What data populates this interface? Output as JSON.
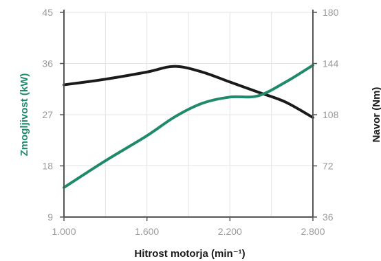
{
  "colors": {
    "power": "#1f8a6b",
    "torque": "#1a1a1a",
    "axis": "#555555",
    "grid": "#e3e3e3",
    "tick_text": "#9a9a9a"
  },
  "chart_data": {
    "type": "line",
    "title": "",
    "xlabel": "Hitrost motorja (min⁻¹)",
    "ylabel_left": "Zmogljivost (kW)",
    "ylabel_right": "Navor (Nm)",
    "xlim": [
      1000,
      2800
    ],
    "ylim_left": [
      9,
      45
    ],
    "ylim_right": [
      36,
      180
    ],
    "x_ticks": [
      1000,
      1600,
      2200,
      2800
    ],
    "x_tick_labels": [
      "1.000",
      "1.600",
      "2.200",
      "2.800"
    ],
    "y_left_ticks": [
      9,
      18,
      27,
      36,
      45
    ],
    "y_left_tick_labels": [
      "9",
      "18",
      "27",
      "36",
      "45"
    ],
    "y_right_ticks": [
      36,
      72,
      108,
      144,
      180
    ],
    "y_right_tick_labels": [
      "36",
      "72",
      "108",
      "144",
      "180"
    ],
    "grid": true,
    "series": [
      {
        "key": "power",
        "axis": "left",
        "color": "#1f8a6b",
        "x": [
          1000,
          1300,
          1600,
          1800,
          2000,
          2200,
          2400,
          2600,
          2800
        ],
        "y": [
          14.2,
          18.9,
          23.3,
          26.6,
          29.0,
          30.1,
          30.3,
          32.7,
          35.7
        ]
      },
      {
        "key": "torque",
        "axis": "right",
        "color": "#1a1a1a",
        "x": [
          1000,
          1300,
          1600,
          1800,
          2000,
          2200,
          2400,
          2600,
          2800
        ],
        "y": [
          129,
          133,
          138,
          142,
          138,
          131,
          124,
          117,
          106
        ]
      }
    ]
  }
}
